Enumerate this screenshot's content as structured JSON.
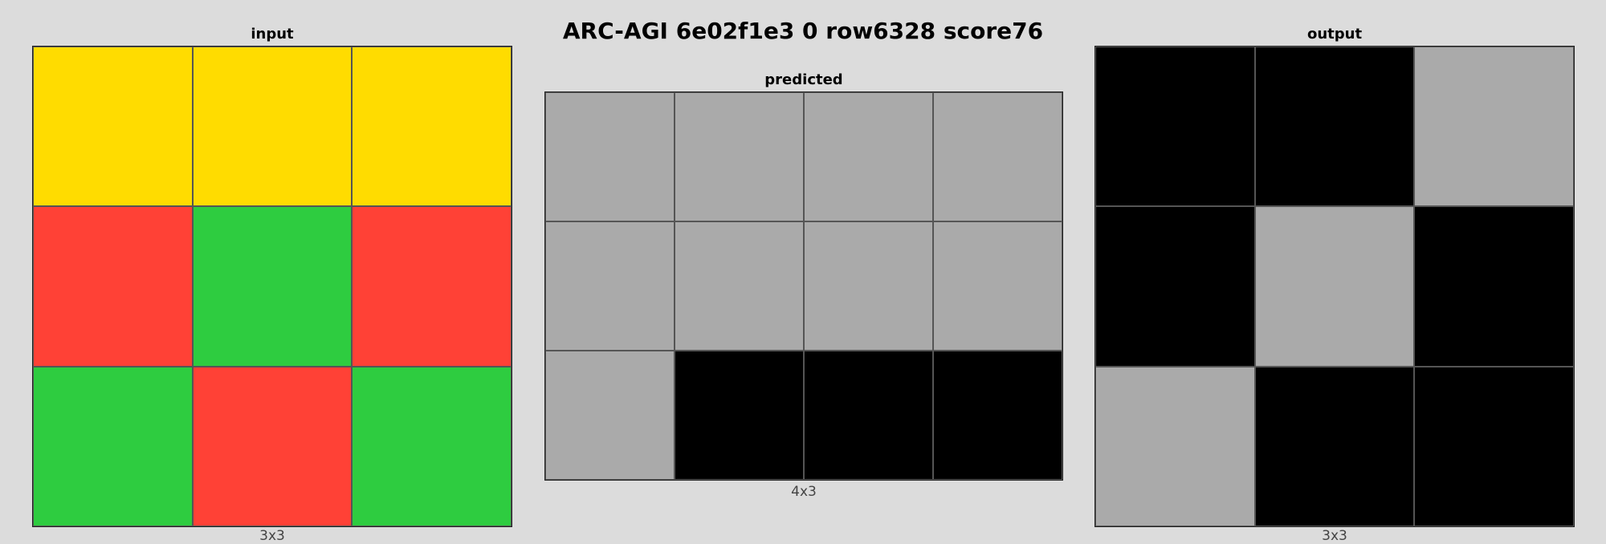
{
  "title": "ARC-AGI 6e02f1e3 0 row6328 score76",
  "colors": {
    "0": "#000000",
    "2": "#ff4136",
    "3": "#2ecc40",
    "4": "#ffdc00",
    "5": "#aaaaaa"
  },
  "panels": {
    "input": {
      "label": "input",
      "dims": "3x3",
      "rows": [
        [
          4,
          4,
          4
        ],
        [
          2,
          3,
          2
        ],
        [
          3,
          2,
          3
        ]
      ]
    },
    "predicted": {
      "label": "predicted",
      "dims": "4x3",
      "rows": [
        [
          5,
          5,
          5,
          5
        ],
        [
          5,
          5,
          5,
          5
        ],
        [
          5,
          0,
          0,
          0
        ]
      ]
    },
    "output": {
      "label": "output",
      "dims": "3x3",
      "rows": [
        [
          0,
          0,
          5
        ],
        [
          0,
          5,
          0
        ],
        [
          5,
          0,
          0
        ]
      ]
    }
  }
}
